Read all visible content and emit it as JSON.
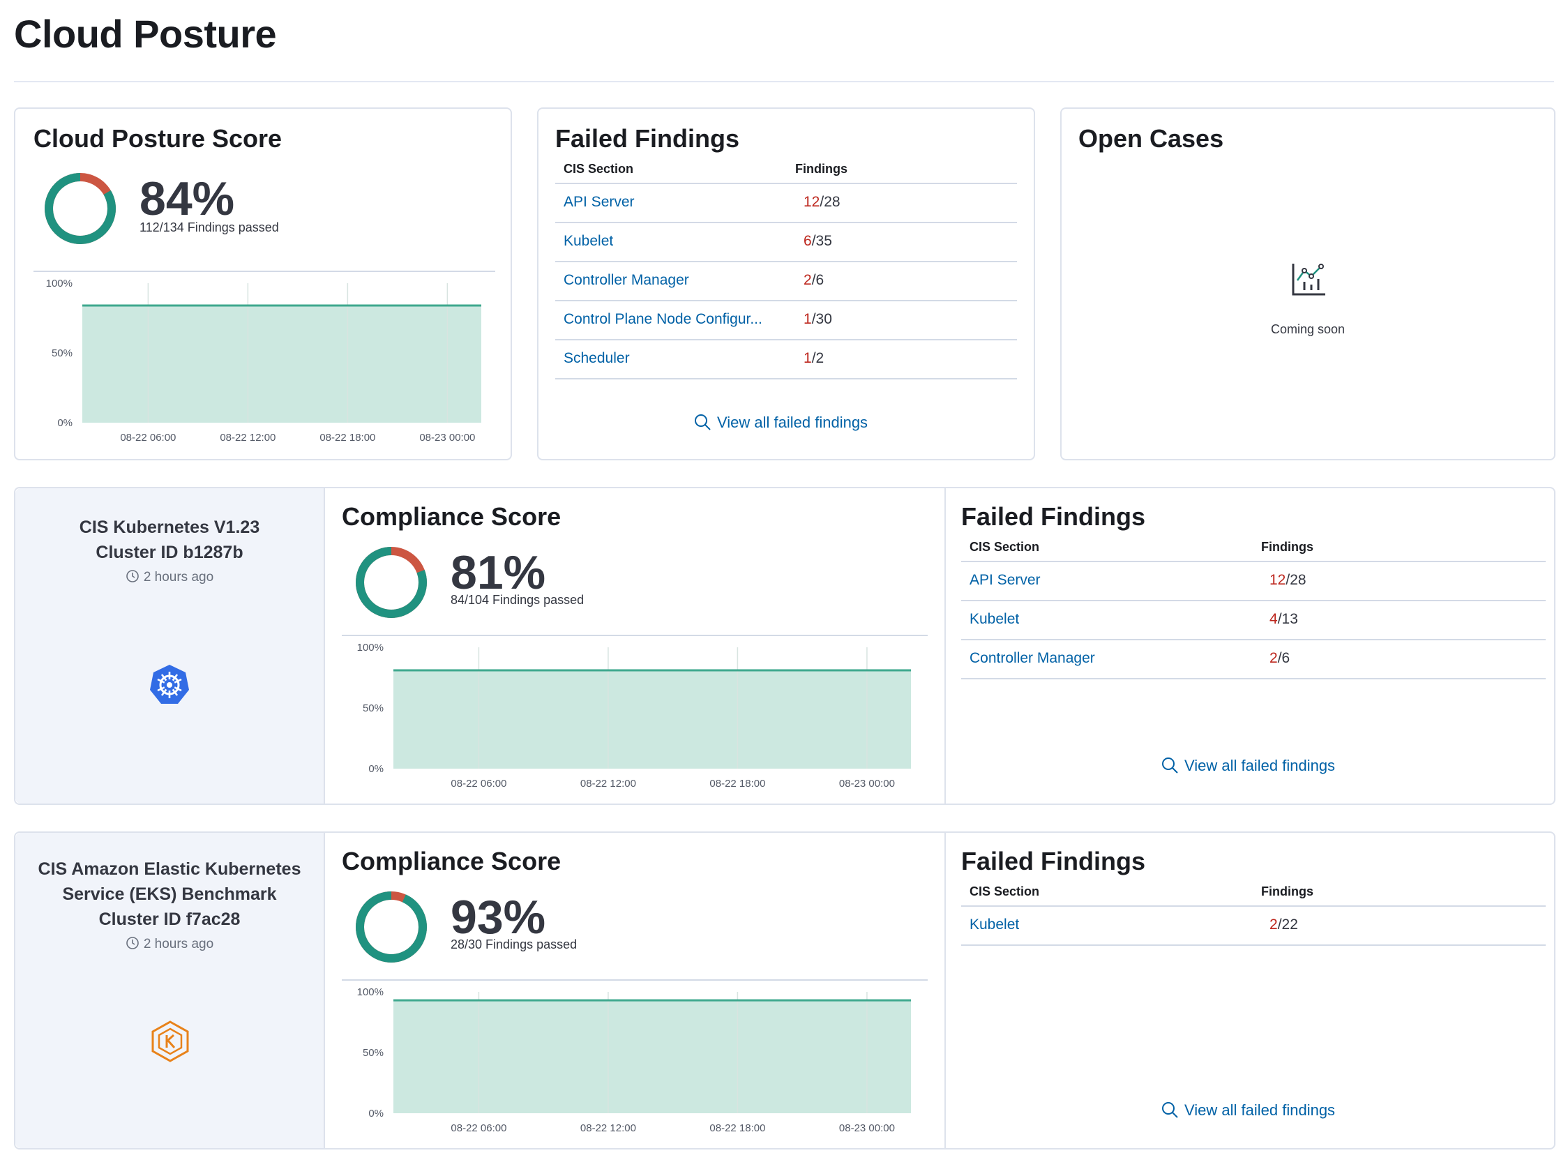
{
  "page": {
    "title": "Cloud Posture"
  },
  "colors": {
    "pass": "#209280",
    "fail": "#cc5642",
    "area": "#cce8e0",
    "link": "#0061a6",
    "kube": "#326ce5",
    "eks": "#e8821a"
  },
  "summary": {
    "score": {
      "title": "Cloud Posture Score",
      "percent": "84%",
      "passed_text": "112/134 Findings passed",
      "passed": 112,
      "total": 134
    },
    "trend": {
      "type": "area",
      "y_ticks": [
        "100%",
        "50%",
        "0%"
      ],
      "x_ticks": [
        "08-22 06:00",
        "08-22 12:00",
        "08-22 18:00",
        "08-23 00:00"
      ],
      "value": 84
    },
    "failed": {
      "title": "Failed Findings",
      "col_section": "CIS Section",
      "col_findings": "Findings",
      "rows": [
        {
          "section": "API Server",
          "failed": "12",
          "total": "/28"
        },
        {
          "section": "Kubelet",
          "failed": "6",
          "total": "/35"
        },
        {
          "section": "Controller Manager",
          "failed": "2",
          "total": "/6"
        },
        {
          "section": "Control Plane Node Configur...",
          "failed": "1",
          "total": "/30"
        },
        {
          "section": "Scheduler",
          "failed": "1",
          "total": "/2"
        }
      ],
      "view_all": "View all failed findings"
    },
    "cases": {
      "title": "Open Cases",
      "icon": "chart-icon",
      "message": "Coming soon"
    }
  },
  "benchmarks": [
    {
      "name_lines": [
        "CIS Kubernetes V1.23",
        "Cluster ID b1287b"
      ],
      "time": "2 hours ago",
      "icon": "kubernetes-icon",
      "score": {
        "title": "Compliance Score",
        "percent": "81%",
        "passed_text": "84/104 Findings passed",
        "passed": 84,
        "total": 104
      },
      "trend": {
        "type": "area",
        "y_ticks": [
          "100%",
          "50%",
          "0%"
        ],
        "x_ticks": [
          "08-22 06:00",
          "08-22 12:00",
          "08-22 18:00",
          "08-23 00:00"
        ],
        "value": 81
      },
      "failed": {
        "title": "Failed Findings",
        "col_section": "CIS Section",
        "col_findings": "Findings",
        "rows": [
          {
            "section": "API Server",
            "failed": "12",
            "total": "/28"
          },
          {
            "section": "Kubelet",
            "failed": "4",
            "total": "/13"
          },
          {
            "section": "Controller Manager",
            "failed": "2",
            "total": "/6"
          }
        ],
        "view_all": "View all failed findings"
      }
    },
    {
      "name_lines": [
        "CIS Amazon Elastic Kubernetes",
        "Service (EKS) Benchmark",
        "Cluster ID f7ac28"
      ],
      "time": "2 hours ago",
      "icon": "eks-icon",
      "score": {
        "title": "Compliance Score",
        "percent": "93%",
        "passed_text": "28/30 Findings passed",
        "passed": 28,
        "total": 30
      },
      "trend": {
        "type": "area",
        "y_ticks": [
          "100%",
          "50%",
          "0%"
        ],
        "x_ticks": [
          "08-22 06:00",
          "08-22 12:00",
          "08-22 18:00",
          "08-23 00:00"
        ],
        "value": 93
      },
      "failed": {
        "title": "Failed Findings",
        "col_section": "CIS Section",
        "col_findings": "Findings",
        "rows": [
          {
            "section": "Kubelet",
            "failed": "2",
            "total": "/22"
          }
        ],
        "view_all": "View all failed findings"
      }
    }
  ]
}
